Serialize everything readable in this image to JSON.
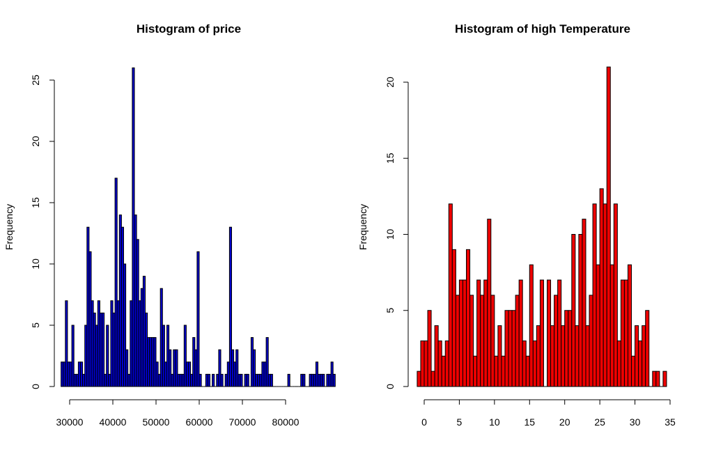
{
  "chart_data": [
    {
      "type": "histogram",
      "title": "Histogram of price",
      "xlabel": "",
      "ylabel": "Frequency",
      "fill": "#0000cc",
      "stroke": "#000000",
      "xlim": [
        27800,
        86500
      ],
      "ylim": [
        0,
        26
      ],
      "xticks": [
        30000,
        40000,
        50000,
        60000,
        70000,
        80000
      ],
      "yticks": [
        0,
        5,
        10,
        15,
        20,
        25
      ],
      "bin_start": 28000,
      "bin_width": 500,
      "values": [
        2,
        2,
        7,
        2,
        2,
        5,
        1,
        1,
        2,
        2,
        1,
        5,
        13,
        11,
        7,
        6,
        5,
        7,
        6,
        6,
        1,
        5,
        1,
        7,
        6,
        17,
        7,
        14,
        13,
        10,
        3,
        1,
        7,
        26,
        14,
        12,
        7,
        8,
        9,
        6,
        4,
        4,
        4,
        4,
        2,
        1,
        8,
        5,
        2,
        5,
        3,
        1,
        3,
        3,
        1,
        1,
        1,
        5,
        2,
        2,
        1,
        4,
        3,
        11,
        1,
        0,
        0,
        1,
        1,
        0,
        1,
        0,
        1,
        3,
        1,
        0,
        1,
        2,
        13,
        3,
        2,
        3,
        1,
        1,
        0,
        1,
        1,
        0,
        4,
        3,
        1,
        1,
        1,
        2,
        2,
        4,
        1,
        1,
        0,
        0,
        0,
        0,
        0,
        0,
        0,
        1,
        0,
        0,
        0,
        0,
        0,
        1,
        1,
        0,
        0,
        1,
        1,
        1,
        2,
        1,
        1,
        1,
        0,
        1,
        1,
        2,
        1
      ],
      "value_bins_note": ""
    },
    {
      "type": "histogram",
      "title": "Histogram of high Temperature",
      "xlabel": "",
      "ylabel": "Frequency",
      "fill": "#ee0000",
      "stroke": "#000000",
      "xlim": [
        -1,
        35
      ],
      "ylim": [
        0,
        21
      ],
      "xticks": [
        0,
        5,
        10,
        15,
        20,
        25,
        30,
        35
      ],
      "yticks": [
        0,
        5,
        10,
        15,
        20
      ],
      "bin_start": -1,
      "bin_width": 0.5,
      "values": [
        1,
        3,
        3,
        5,
        1,
        4,
        3,
        2,
        3,
        12,
        9,
        6,
        7,
        7,
        9,
        6,
        2,
        7,
        6,
        7,
        11,
        6,
        2,
        4,
        2,
        5,
        5,
        5,
        6,
        7,
        3,
        2,
        8,
        3,
        4,
        7,
        0,
        7,
        4,
        6,
        7,
        4,
        5,
        5,
        10,
        4,
        10,
        11,
        4,
        6,
        12,
        8,
        13,
        12,
        21,
        8,
        12,
        3,
        7,
        7,
        8,
        2,
        4,
        3,
        4,
        5,
        0,
        1,
        1,
        0,
        1
      ]
    }
  ]
}
